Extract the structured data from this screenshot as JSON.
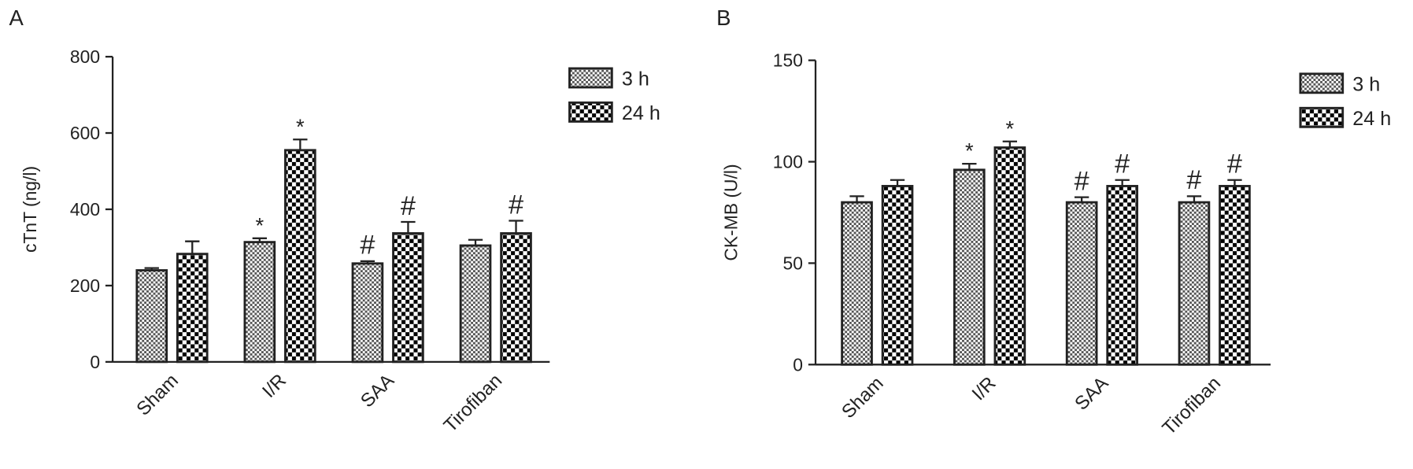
{
  "chart_data": [
    {
      "type": "bar",
      "panel": "A",
      "y_label": "cTnT (ng/l)",
      "categories": [
        "Sham",
        "I/R",
        "SAA",
        "Tirofiban"
      ],
      "series": [
        {
          "name": "3 h",
          "color": "#555555",
          "values": [
            240,
            314,
            258,
            305
          ],
          "errors": [
            6,
            10,
            6,
            15
          ],
          "annotations": [
            null,
            "*",
            "#",
            null
          ]
        },
        {
          "name": "24 h",
          "color": "#000000",
          "values": [
            283,
            555,
            337,
            337
          ],
          "errors": [
            33,
            28,
            30,
            33
          ],
          "annotations": [
            null,
            "*",
            "#",
            "#"
          ]
        }
      ],
      "ylim": [
        0,
        800
      ],
      "yticks": [
        0,
        200,
        400,
        600,
        800
      ]
    },
    {
      "type": "bar",
      "panel": "B",
      "y_label": "CK-MB (U/l)",
      "categories": [
        "Sham",
        "I/R",
        "SAA",
        "Tirofiban"
      ],
      "series": [
        {
          "name": "3 h",
          "color": "#555555",
          "values": [
            80,
            96,
            80,
            80
          ],
          "errors": [
            3,
            3,
            2.5,
            3
          ],
          "annotations": [
            null,
            "*",
            "#",
            "#"
          ]
        },
        {
          "name": "24 h",
          "color": "#000000",
          "values": [
            88,
            107,
            88,
            88
          ],
          "errors": [
            3,
            3,
            3,
            3
          ],
          "annotations": [
            null,
            "*",
            "#",
            "#"
          ]
        }
      ],
      "ylim": [
        0,
        150
      ],
      "yticks": [
        0,
        50,
        100,
        150
      ]
    }
  ]
}
